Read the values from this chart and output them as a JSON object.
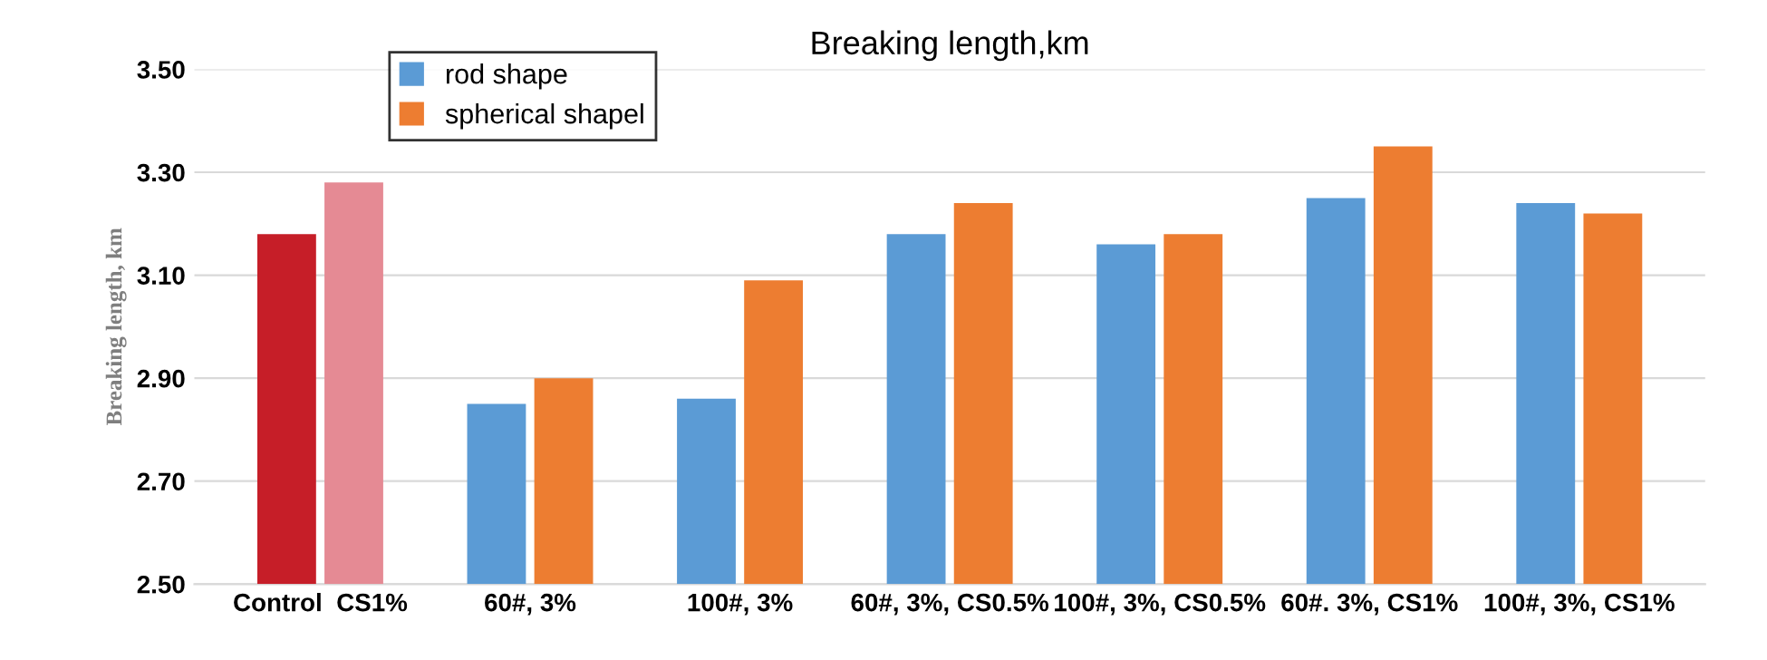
{
  "chart_data": {
    "type": "bar",
    "title": "Breaking length,km",
    "ylabel": "Breaking length, km",
    "categories": [
      "Control  CS1%",
      "60#, 3%",
      "100#, 3%",
      "60#, 3%, CS0.5%",
      "100#, 3%, CS0.5%",
      "60#. 3%, CS1%",
      "100#, 3%, CS1%"
    ],
    "series": [
      {
        "name": "rod shape",
        "color": "#5b9bd5",
        "colors": [
          "#c61e28",
          "#5b9bd5",
          "#5b9bd5",
          "#5b9bd5",
          "#5b9bd5",
          "#5b9bd5",
          "#5b9bd5"
        ],
        "values": [
          3.18,
          2.85,
          2.86,
          3.18,
          3.16,
          3.25,
          3.24
        ]
      },
      {
        "name": "spherical shapel",
        "color": "#ed7d31",
        "colors": [
          "#e58a94",
          "#ed7d31",
          "#ed7d31",
          "#ed7d31",
          "#ed7d31",
          "#ed7d31",
          "#ed7d31"
        ],
        "values": [
          3.28,
          2.9,
          3.09,
          3.24,
          3.18,
          3.35,
          3.22
        ]
      }
    ],
    "ylim": [
      2.5,
      3.5
    ],
    "yticks": [
      {
        "value": 2.5,
        "label": "2.50"
      },
      {
        "value": 2.7,
        "label": "2.70"
      },
      {
        "value": 2.9,
        "label": "2.90"
      },
      {
        "value": 3.1,
        "label": "3.10"
      },
      {
        "value": 3.3,
        "label": "3.30"
      },
      {
        "value": 3.5,
        "label": "3.50"
      }
    ],
    "grid": "y",
    "legend": "top left"
  }
}
